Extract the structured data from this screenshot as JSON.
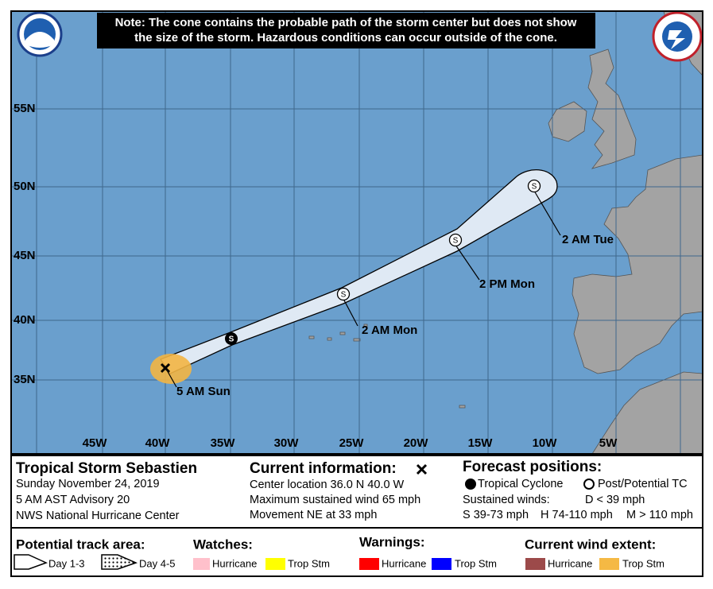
{
  "note": [
    "Note: The cone contains the probable path of the storm center but does not show",
    "the size of the storm. Hazardous conditions can occur outside of the cone."
  ],
  "map": {
    "lat_labels": [
      "55N",
      "50N",
      "45N",
      "40N",
      "35N"
    ],
    "lon_labels": [
      "45W",
      "40W",
      "35W",
      "30W",
      "25W",
      "20W",
      "15W",
      "10W",
      "5W"
    ],
    "point_symbol": "S",
    "point_labels": [
      "5 AM Sun",
      "2 AM Mon",
      "2 PM Mon",
      "2 AM Tue"
    ]
  },
  "storm": {
    "name": "Tropical Storm Sebastien",
    "date": "Sunday November 24, 2019",
    "advisory": "5 AM AST Advisory 20",
    "center": "NWS National Hurricane Center"
  },
  "current": {
    "heading": "Current information:",
    "lines": [
      "Center location 36.0 N 40.0 W",
      "Maximum sustained wind 65 mph",
      "Movement NE at 33 mph"
    ]
  },
  "forecast": {
    "heading": "Forecast positions:",
    "tropical": "Tropical Cyclone",
    "post": "Post/Potential TC",
    "winds_label": "Sustained winds:",
    "d": "D < 39 mph",
    "s": "S 39-73 mph",
    "h": "H 74-110 mph",
    "m": "M > 110 mph"
  },
  "legend": {
    "track": {
      "heading": "Potential track area:",
      "day13": "Day 1-3",
      "day45": "Day 4-5"
    },
    "watches": {
      "heading": "Watches:",
      "hurricane": "Hurricane",
      "trop": "Trop Stm"
    },
    "warnings": {
      "heading": "Warnings:",
      "hurricane": "Hurricane",
      "trop": "Trop Stm"
    },
    "wind": {
      "heading": "Current wind extent:",
      "hurricane": "Hurricane",
      "trop": "Trop Stm"
    }
  }
}
